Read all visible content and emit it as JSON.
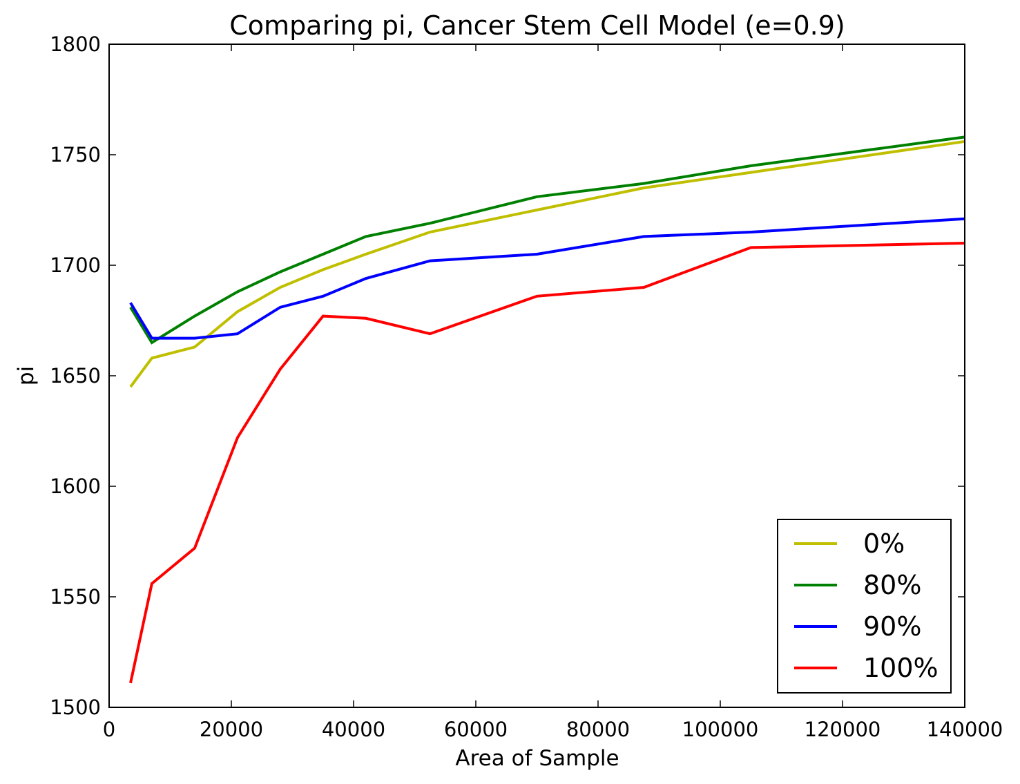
{
  "chart_data": {
    "type": "line",
    "title": "Comparing pi, Cancer Stem Cell Model (e=0.9)",
    "xlabel": "Area of Sample",
    "ylabel": "pi",
    "xlim": [
      0,
      140000
    ],
    "ylim": [
      1500,
      1800
    ],
    "xticks": [
      0,
      20000,
      40000,
      60000,
      80000,
      100000,
      120000,
      140000
    ],
    "yticks": [
      1500,
      1550,
      1600,
      1650,
      1700,
      1750,
      1800
    ],
    "xtick_labels": [
      "0",
      "20000",
      "40000",
      "60000",
      "80000",
      "100000",
      "120000",
      "140000"
    ],
    "ytick_labels": [
      "1500",
      "1550",
      "1600",
      "1650",
      "1700",
      "1750",
      "1800"
    ],
    "grid": false,
    "legend_position": "lower-right",
    "x": [
      3500,
      7000,
      14000,
      21000,
      28000,
      35000,
      42000,
      52500,
      70000,
      87500,
      105000,
      140000
    ],
    "series": [
      {
        "name": "0%",
        "color": "#bfbf00",
        "values": [
          1645,
          1658,
          1663,
          1679,
          1690,
          1698,
          1705,
          1715,
          1725,
          1735,
          1742,
          1756
        ]
      },
      {
        "name": "80%",
        "color": "#008000",
        "values": [
          1681,
          1665,
          1677,
          1688,
          1697,
          1705,
          1713,
          1719,
          1731,
          1737,
          1745,
          1758
        ]
      },
      {
        "name": "90%",
        "color": "#0000ff",
        "values": [
          1683,
          1667,
          1667,
          1669,
          1681,
          1686,
          1694,
          1702,
          1705,
          1713,
          1715,
          1721
        ]
      },
      {
        "name": "100%",
        "color": "#ff0000",
        "values": [
          1511,
          1556,
          1572,
          1622,
          1653,
          1677,
          1676,
          1669,
          1686,
          1690,
          1708,
          1710
        ]
      }
    ]
  }
}
